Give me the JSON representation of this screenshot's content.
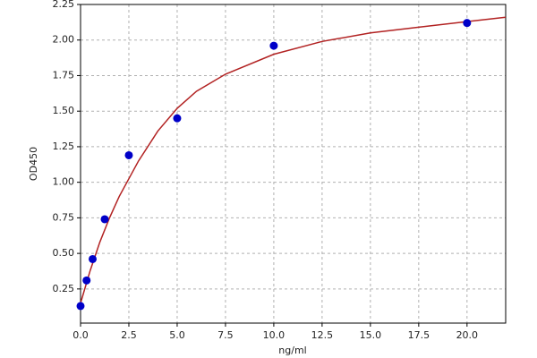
{
  "chart_data": {
    "type": "scatter",
    "x_label": "ng/ml",
    "y_label": "OD450",
    "points": {
      "color": "#0000c8",
      "x": [
        0,
        0.3125,
        0.625,
        1.25,
        2.5,
        5,
        10,
        20
      ],
      "y": [
        0.13,
        0.31,
        0.46,
        0.74,
        1.19,
        1.45,
        1.96,
        2.12
      ]
    },
    "curve": {
      "color": "#b22222",
      "x": [
        0,
        0.5,
        1,
        1.5,
        2,
        3,
        4,
        5,
        6,
        7.5,
        10,
        12.5,
        15,
        17.5,
        20,
        22
      ],
      "y": [
        0.15,
        0.38,
        0.58,
        0.75,
        0.9,
        1.15,
        1.36,
        1.52,
        1.64,
        1.76,
        1.9,
        1.99,
        2.05,
        2.09,
        2.13,
        2.16
      ]
    },
    "xlim": [
      0,
      22
    ],
    "ylim": [
      0.01,
      2.25
    ],
    "xticks": [
      {
        "value": 0,
        "label": "0.0"
      },
      {
        "value": 2.5,
        "label": "2.5"
      },
      {
        "value": 5,
        "label": "5.0"
      },
      {
        "value": 7.5,
        "label": "7.5"
      },
      {
        "value": 10,
        "label": "10.0"
      },
      {
        "value": 12.5,
        "label": "12.5"
      },
      {
        "value": 15,
        "label": "15.0"
      },
      {
        "value": 17.5,
        "label": "17.5"
      },
      {
        "value": 20,
        "label": "20.0"
      }
    ],
    "yticks": [
      0.25,
      {
        "value": 0.5,
        "label": "0.50"
      },
      0.75,
      {
        "value": 1,
        "label": "1.00"
      },
      1.25,
      {
        "value": 1.5,
        "label": "1.50"
      },
      1.75,
      {
        "value": 2,
        "label": "2.00"
      },
      2.25
    ],
    "grid": true
  }
}
